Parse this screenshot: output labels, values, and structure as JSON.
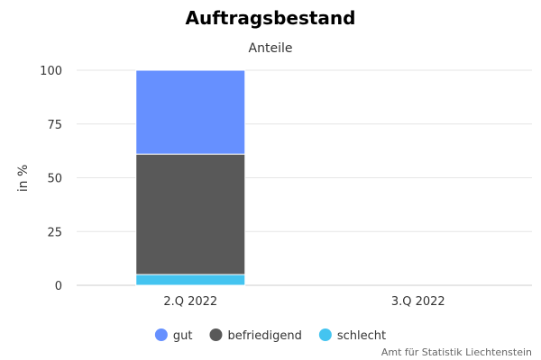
{
  "chart_data": {
    "type": "bar",
    "stacked": true,
    "title": "Auftragsbestand",
    "subtitle": "Anteile",
    "ylabel": "in %",
    "xlabel": "",
    "ylim": [
      0,
      100
    ],
    "yticks": [
      "0",
      "25",
      "50",
      "75",
      "100"
    ],
    "categories": [
      "2.Q 2022",
      "3.Q 2022"
    ],
    "series": [
      {
        "name": "gut",
        "values": [
          39,
          null
        ],
        "color": "#6690ff"
      },
      {
        "name": "befriedigend",
        "values": [
          56,
          null
        ],
        "color": "#595959"
      },
      {
        "name": "schlecht",
        "values": [
          5,
          null
        ],
        "color": "#44c4f0"
      }
    ],
    "legend": "bottom-center",
    "grid": true
  },
  "credit": "Amt für Statistik Liechtenstein"
}
